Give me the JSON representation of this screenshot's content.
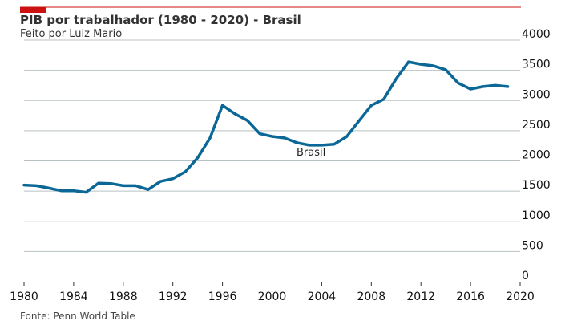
{
  "chart_data": {
    "type": "line",
    "title": "PIB por trabalhador (1980 - 2020) - Brasil",
    "subtitle": "Feito por Luiz Mario",
    "source": "Fonte: Penn World Table",
    "xlabel": "",
    "ylabel": "",
    "xlim": [
      1980,
      2020
    ],
    "ylim": [
      0,
      4000
    ],
    "x_ticks": [
      1980,
      1984,
      1988,
      1992,
      1996,
      2000,
      2004,
      2008,
      2012,
      2016,
      2020
    ],
    "y_ticks": [
      0,
      500,
      1000,
      1500,
      2000,
      2500,
      3000,
      3500,
      4000
    ],
    "grid": "horizontal",
    "y_axis_side": "right",
    "accent_color": "#cc1111",
    "series": [
      {
        "name": "Brasil",
        "color": "#0b6896",
        "x": [
          1980,
          1981,
          1982,
          1983,
          1984,
          1985,
          1986,
          1987,
          1988,
          1989,
          1990,
          1991,
          1992,
          1993,
          1994,
          1995,
          1996,
          1997,
          1998,
          1999,
          2000,
          2001,
          2002,
          2003,
          2004,
          2005,
          2006,
          2007,
          2008,
          2009,
          2010,
          2011,
          2012,
          2013,
          2014,
          2015,
          2016,
          2017,
          2018,
          2019
        ],
        "values": [
          1600,
          1590,
          1550,
          1505,
          1505,
          1480,
          1630,
          1625,
          1590,
          1590,
          1525,
          1660,
          1705,
          1820,
          2050,
          2380,
          2920,
          2780,
          2670,
          2450,
          2405,
          2380,
          2300,
          2260,
          2260,
          2275,
          2400,
          2660,
          2920,
          3020,
          3360,
          3640,
          3600,
          3575,
          3510,
          3290,
          3190,
          3230,
          3250,
          3230
        ]
      }
    ]
  }
}
